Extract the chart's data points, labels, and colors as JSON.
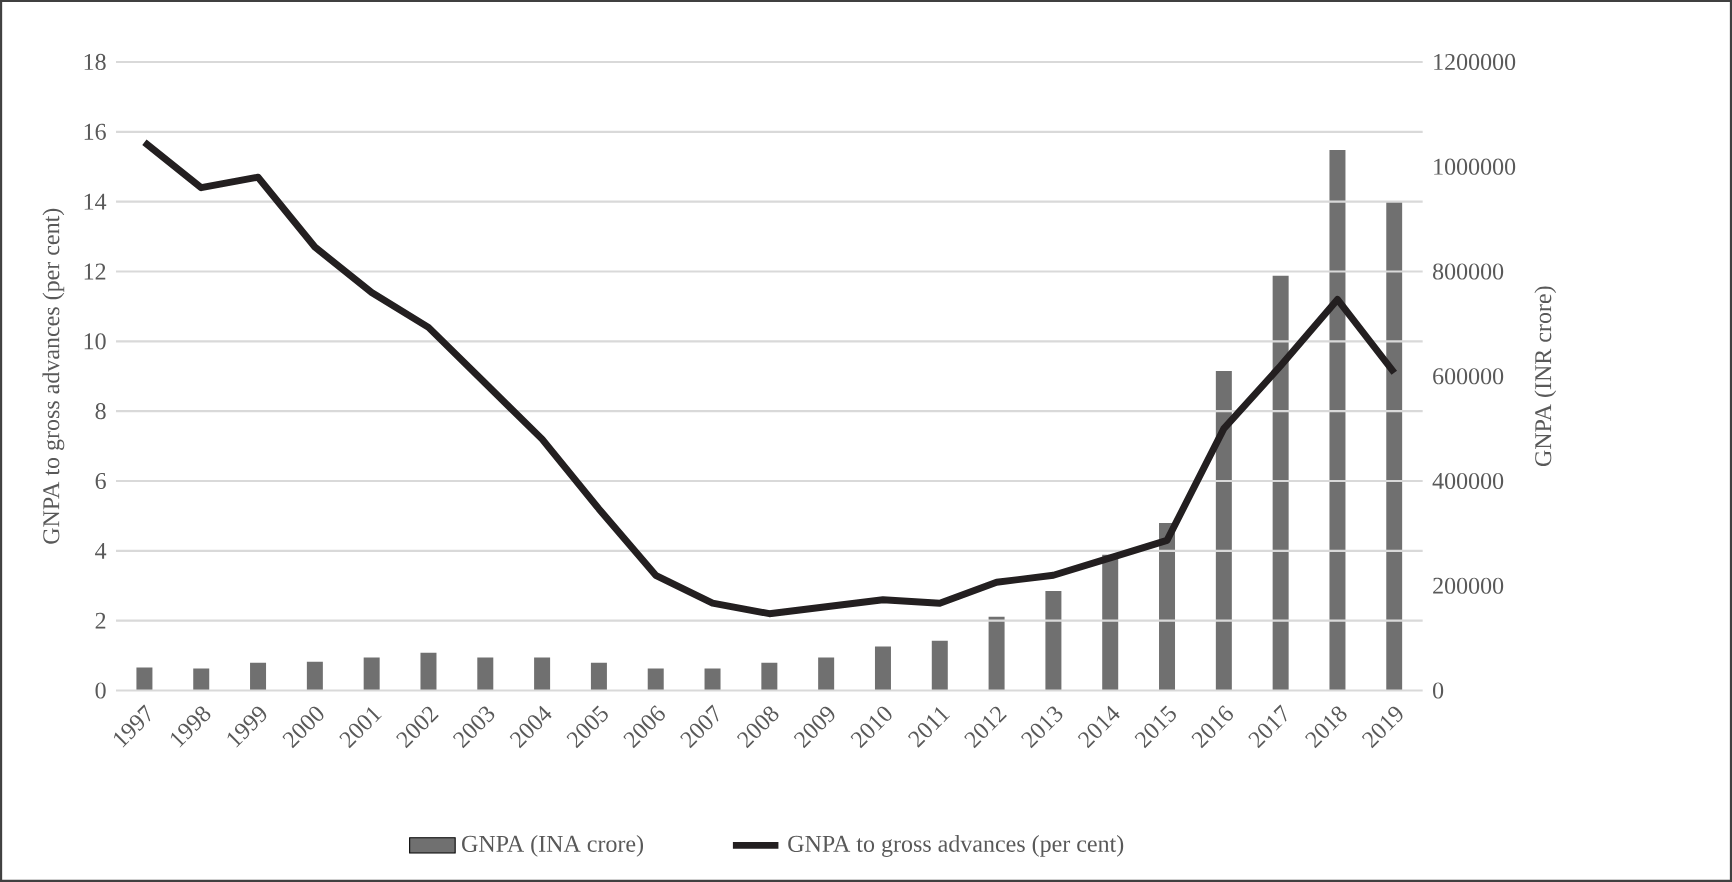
{
  "chart_data": {
    "type": "bar",
    "categories": [
      "1997",
      "1998",
      "1999",
      "2000",
      "2001",
      "2002",
      "2003",
      "2004",
      "2005",
      "2006",
      "2007",
      "2008",
      "2009",
      "2010",
      "2011",
      "2012",
      "2013",
      "2014",
      "2015",
      "2016",
      "2017",
      "2018",
      "2019"
    ],
    "series": [
      {
        "name": "GNPA (INA crore)",
        "axis": "y2",
        "color": "#707070",
        "values": [
          44000,
          42000,
          53000,
          55000,
          63000,
          72000,
          63000,
          63000,
          53000,
          42000,
          42000,
          53000,
          63000,
          84000,
          95000,
          141000,
          190000,
          259000,
          320000,
          610000,
          792000,
          1032000,
          933000
        ]
      },
      {
        "name": "GNPA to gross advances (per cent)",
        "type": "line",
        "axis": "y",
        "color": "#231f20",
        "values": [
          15.7,
          14.4,
          14.7,
          12.7,
          11.4,
          10.4,
          8.8,
          7.2,
          5.2,
          3.3,
          2.5,
          2.2,
          2.4,
          2.6,
          2.5,
          3.1,
          3.3,
          3.8,
          4.3,
          7.5,
          9.3,
          11.2,
          9.1
        ]
      }
    ],
    "ylabel": "GNPA to gross advances (per cent)",
    "y2label": "GNPA (INR crore)",
    "ylim": [
      0,
      18
    ],
    "yticks": [
      0,
      2,
      4,
      6,
      8,
      10,
      12,
      14,
      16,
      18
    ],
    "y2lim": [
      0,
      1200000
    ],
    "y2ticks": [
      0,
      200000,
      400000,
      600000,
      800000,
      1000000,
      1200000
    ],
    "grid": "y",
    "legend": "bottom"
  }
}
